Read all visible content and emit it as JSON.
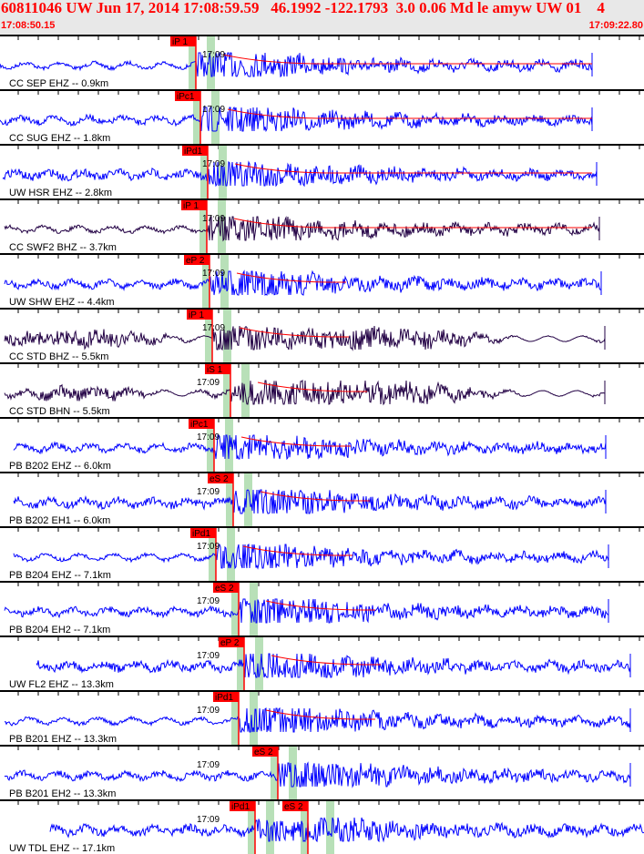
{
  "header": {
    "title": "60811046 UW Jun 17, 2014 17:08:59.59   46.1992 -122.1793  3.0 0.06 Md le amyw UW 01    4",
    "start_time": "17:08:50.15",
    "end_time": "17:09:22.80"
  },
  "minute_label": "17:09",
  "colors": {
    "trace_blue": "#0000ff",
    "trace_purple": "#220044",
    "pick": "#ff0000",
    "window": "#b8e0b8",
    "header_bg": "#e8e8e8"
  },
  "traces": [
    {
      "label": "CC SEP EHZ -- 0.9km",
      "color": "blue",
      "picks": [
        "iP 1"
      ]
    },
    {
      "label": "CC SUG EHZ -- 1.8km",
      "color": "blue",
      "picks": [
        "iPc1"
      ]
    },
    {
      "label": "UW HSR EHZ -- 2.8km",
      "color": "blue",
      "picks": [
        "iPd1"
      ]
    },
    {
      "label": "CC SWF2 BHZ -- 3.7km",
      "color": "purple",
      "picks": [
        "iP 1"
      ]
    },
    {
      "label": "UW SHW EHZ -- 4.4km",
      "color": "blue",
      "picks": [
        "eP 2"
      ]
    },
    {
      "label": "CC STD BHZ -- 5.5km",
      "color": "purple",
      "picks": [
        "iP 1"
      ]
    },
    {
      "label": "CC STD BHN -- 5.5km",
      "color": "purple",
      "picks": [
        "iS 1"
      ]
    },
    {
      "label": "PB B202 EHZ -- 6.0km",
      "color": "blue",
      "picks": [
        "iPc1"
      ]
    },
    {
      "label": "PB B202 EH1 -- 6.0km",
      "color": "blue",
      "picks": [
        "eS 2"
      ]
    },
    {
      "label": "PB B204 EHZ -- 7.1km",
      "color": "blue",
      "picks": [
        "iPd1"
      ]
    },
    {
      "label": "PB B204 EH2 -- 7.1km",
      "color": "blue",
      "picks": [
        "eS 2"
      ]
    },
    {
      "label": "UW FL2 EHZ -- 13.3km",
      "color": "blue",
      "picks": [
        "eP 2"
      ]
    },
    {
      "label": "PB B201 EHZ -- 13.3km",
      "color": "blue",
      "picks": [
        "iPd1"
      ]
    },
    {
      "label": "PB B201 EH2 -- 13.3km",
      "color": "blue",
      "picks": [
        "eS 2"
      ]
    },
    {
      "label": "UW TDL EHZ -- 17.1km",
      "color": "blue",
      "picks": [
        "iPd1",
        "eS 2"
      ]
    }
  ]
}
